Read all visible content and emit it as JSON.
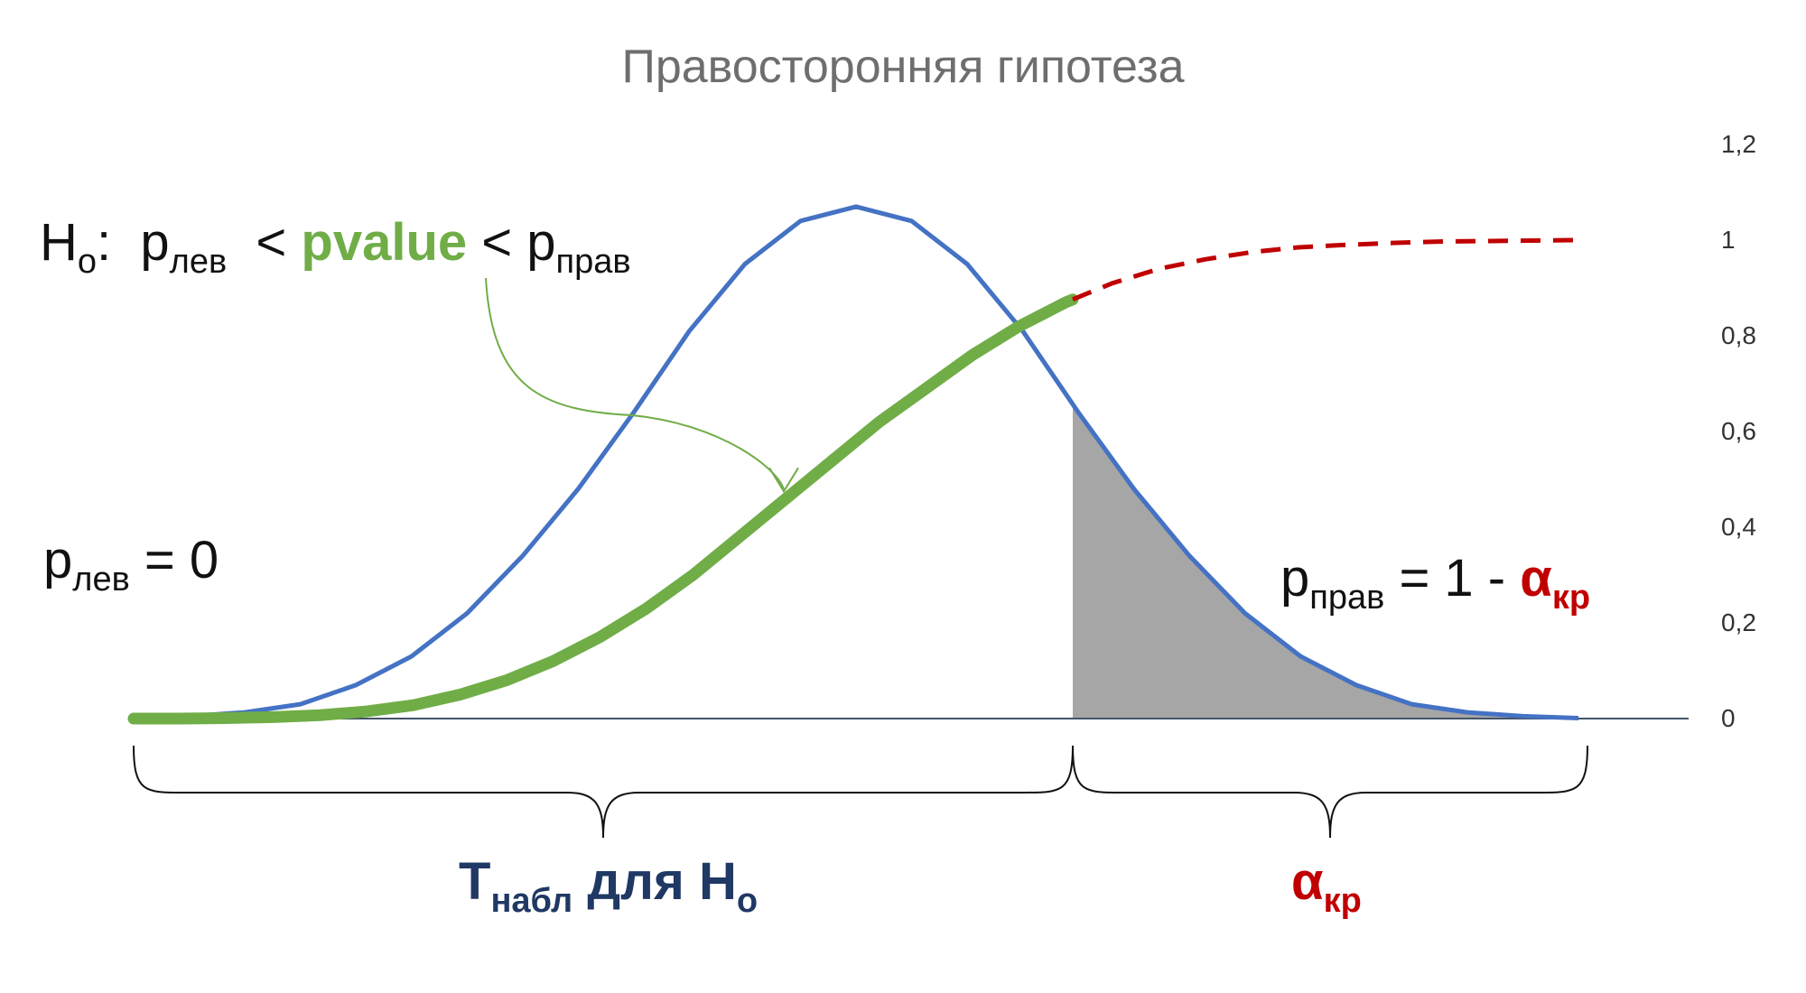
{
  "title": "Правосторонняя гипотеза",
  "y_ticks": [
    "0",
    "0,2",
    "0,4",
    "0,6",
    "0,8",
    "1",
    "1,2"
  ],
  "hypothesis": {
    "h": "H",
    "h_sub": "о",
    "colon": ":",
    "p1": "p",
    "p1_sub": "лев",
    "lt1": "<",
    "pvalue": "pvalue",
    "lt2": "<",
    "p2": "p",
    "p2_sub": "прав"
  },
  "left_label": {
    "p": "p",
    "sub": "лев",
    "rest": "= 0"
  },
  "right_label": {
    "p": "p",
    "sub": "прав",
    "rest": "= 1 -",
    "alpha": "α",
    "alpha_sub": "кр"
  },
  "bottom_left": {
    "t": "T",
    "t_sub": "набл",
    "mid": "для H",
    "h_sub": "о"
  },
  "bottom_right": {
    "alpha": "α",
    "alpha_sub": "кр"
  },
  "colors": {
    "density": "#4472c4",
    "cdf": "#70ad47",
    "cdf_tail": "#c00000",
    "tail_fill": "#a6a6a6",
    "axis": "#44546a",
    "brace": "#111111",
    "navy": "#1f3864",
    "red": "#c00000"
  },
  "chart_data": {
    "type": "line",
    "ylim": [
      0,
      1.2
    ],
    "y_ticks": [
      0,
      0.2,
      0.4,
      0.6,
      0.8,
      1,
      1.2
    ],
    "series": [
      {
        "values": [
          0.001,
          0.005,
          0.013,
          0.03,
          0.07,
          0.13,
          0.22,
          0.34,
          0.48,
          0.64,
          0.81,
          0.95,
          1.04,
          1.07,
          1.04,
          0.95,
          0.81,
          0.64,
          0.48,
          0.34,
          0.22,
          0.13,
          0.07,
          0.03,
          0.013,
          0.005,
          0.001
        ]
      },
      {
        "values": [
          0.0,
          0.0,
          0.001,
          0.003,
          0.007,
          0.015,
          0.028,
          0.05,
          0.08,
          0.12,
          0.17,
          0.23,
          0.3,
          0.38,
          0.46,
          0.54,
          0.62,
          0.69,
          0.76,
          0.82,
          0.87,
          0.91,
          0.94,
          0.96,
          0.975,
          0.985,
          0.99,
          0.994,
          0.997,
          0.998,
          0.999,
          1.0
        ]
      }
    ],
    "critical_fraction": 0.65,
    "cdf_solid_until_fraction": 0.65
  }
}
